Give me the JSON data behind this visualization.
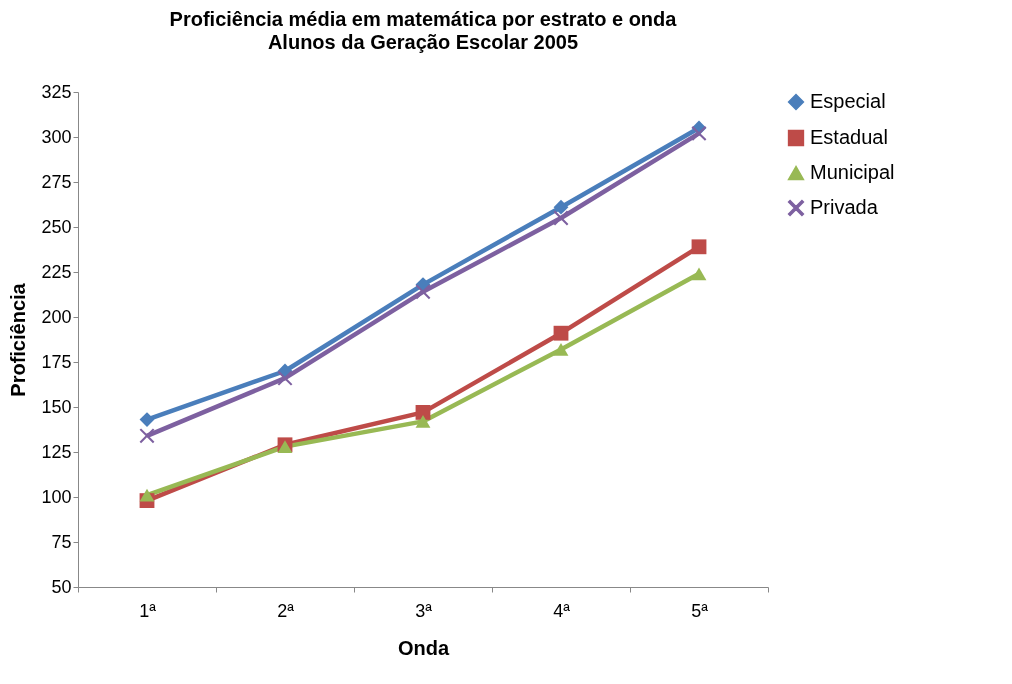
{
  "chart_data": {
    "type": "line",
    "title": "Proficiência média em matemática por estrato e onda",
    "subtitle": "Alunos da Geração Escolar 2005",
    "xlabel": "Onda",
    "ylabel": "Proficiência",
    "categories": [
      "1ª",
      "2ª",
      "3ª",
      "4ª",
      "5ª"
    ],
    "ylim": [
      50,
      325
    ],
    "yticks": [
      50,
      75,
      100,
      125,
      150,
      175,
      200,
      225,
      250,
      275,
      300,
      325
    ],
    "grid": false,
    "legend": "right",
    "series": [
      {
        "name": "Especial",
        "color": "#4a7ebb",
        "marker": "diamond",
        "values": [
          143,
          170,
          218,
          261,
          305
        ]
      },
      {
        "name": "Estadual",
        "color": "#be4b48",
        "marker": "square",
        "values": [
          98,
          129,
          147,
          191,
          239
        ]
      },
      {
        "name": "Municipal",
        "color": "#98b954",
        "marker": "triangle",
        "values": [
          101,
          128,
          142,
          182,
          224
        ]
      },
      {
        "name": "Privada",
        "color": "#7d60a0",
        "marker": "cross",
        "values": [
          134,
          166,
          214,
          255,
          302
        ]
      }
    ]
  }
}
